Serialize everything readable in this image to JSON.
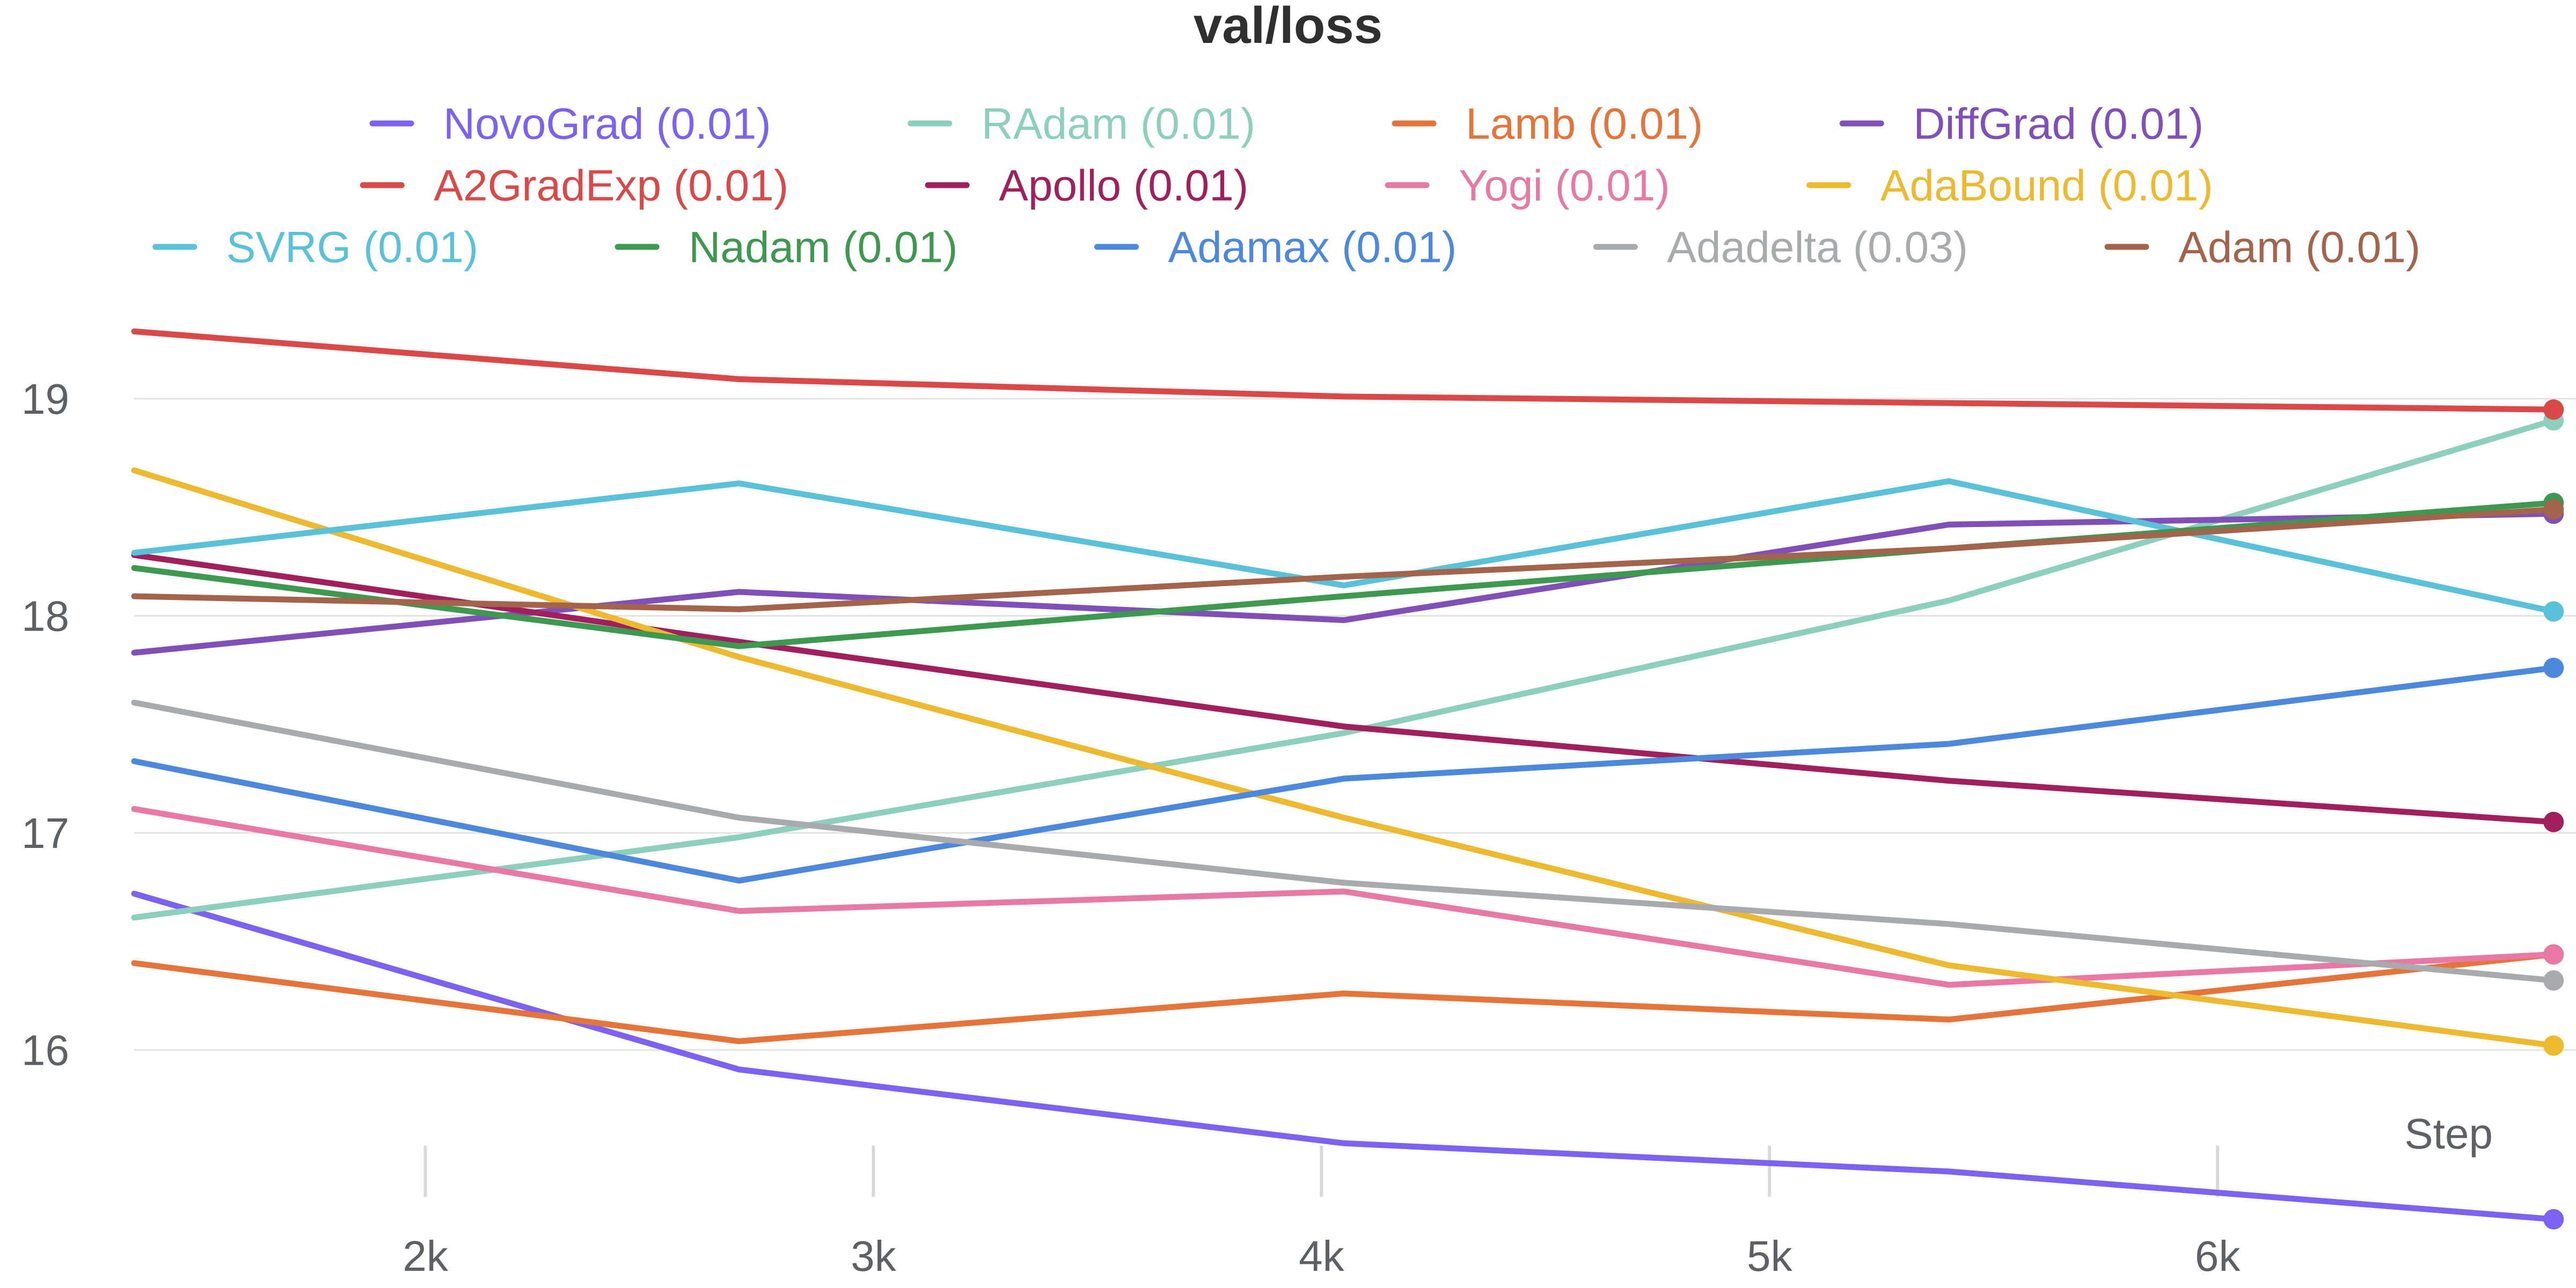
{
  "chart_data": {
    "type": "line",
    "title": "val/loss",
    "xlabel": "Step",
    "ylabel": "",
    "xlim": [
      1350,
      6800
    ],
    "ylim": [
      15.2,
      19.65
    ],
    "x_ticks": [
      {
        "value": 2000,
        "label": "2k"
      },
      {
        "value": 3000,
        "label": "3k"
      },
      {
        "value": 4000,
        "label": "4k"
      },
      {
        "value": 5000,
        "label": "5k"
      },
      {
        "value": 6000,
        "label": "6k"
      }
    ],
    "y_ticks": [
      {
        "value": 16,
        "label": "16"
      },
      {
        "value": 17,
        "label": "17"
      },
      {
        "value": 18,
        "label": "18"
      },
      {
        "value": 19,
        "label": "19"
      }
    ],
    "grid": "horizontal",
    "legend_position": "top",
    "x": [
      1350,
      2700,
      4050,
      5400,
      6750
    ],
    "series": [
      {
        "name": "NovoGrad (0.01)",
        "color": "#7b62f0",
        "values": [
          16.72,
          15.91,
          15.57,
          15.44,
          15.22
        ]
      },
      {
        "name": "RAdam (0.01)",
        "color": "#8ccfbd",
        "values": [
          16.61,
          16.98,
          17.46,
          18.07,
          18.9
        ]
      },
      {
        "name": "Lamb (0.01)",
        "color": "#e4743a",
        "values": [
          16.4,
          16.04,
          16.26,
          16.14,
          16.44
        ]
      },
      {
        "name": "DiffGrad (0.01)",
        "color": "#8050b8",
        "values": [
          17.83,
          18.11,
          17.98,
          18.42,
          18.47
        ]
      },
      {
        "name": "A2GradExp (0.01)",
        "color": "#da4848",
        "values": [
          19.31,
          19.09,
          19.01,
          18.98,
          18.95
        ]
      },
      {
        "name": "Apollo (0.01)",
        "color": "#a01f5c",
        "values": [
          18.28,
          17.88,
          17.49,
          17.24,
          17.05
        ]
      },
      {
        "name": "Yogi (0.01)",
        "color": "#e879a4",
        "values": [
          17.11,
          16.64,
          16.73,
          16.3,
          16.44
        ]
      },
      {
        "name": "AdaBound (0.01)",
        "color": "#ecb92f",
        "values": [
          18.67,
          17.81,
          17.07,
          16.39,
          16.02
        ]
      },
      {
        "name": "SVRG (0.01)",
        "color": "#59c2d9",
        "values": [
          18.29,
          18.61,
          18.14,
          18.62,
          18.02
        ]
      },
      {
        "name": "Nadam (0.01)",
        "color": "#3d9850",
        "values": [
          18.22,
          17.86,
          18.09,
          18.31,
          18.52
        ]
      },
      {
        "name": "Adamax (0.01)",
        "color": "#4c88dc",
        "values": [
          17.33,
          16.78,
          17.25,
          17.41,
          17.76
        ]
      },
      {
        "name": "Adadelta (0.03)",
        "color": "#a8aaad",
        "values": [
          17.6,
          17.07,
          16.77,
          16.58,
          16.32
        ]
      },
      {
        "name": "Adam (0.01)",
        "color": "#a3644b",
        "values": [
          18.09,
          18.03,
          18.18,
          18.31,
          18.49
        ]
      }
    ]
  }
}
